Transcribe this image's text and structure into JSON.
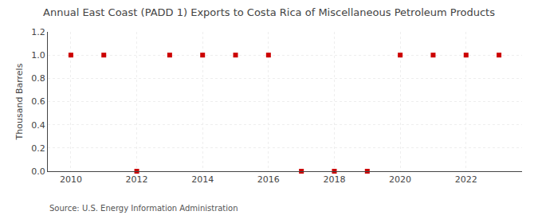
{
  "chart_data": {
    "type": "scatter",
    "title": "Annual East Coast (PADD 1) Exports to Costa Rica of Miscellaneous Petroleum Products",
    "ylabel": "Thousand Barrels",
    "annotations": [
      "Source: U.S. Energy Information Administration"
    ],
    "x": [
      2010,
      2011,
      2012,
      2013,
      2014,
      2015,
      2016,
      2017,
      2018,
      2019,
      2020,
      2021,
      2022,
      2023
    ],
    "values": [
      1.0,
      1.0,
      0.0,
      1.0,
      1.0,
      1.0,
      1.0,
      0.0,
      0.0,
      0.0,
      1.0,
      1.0,
      1.0,
      1.0
    ],
    "color": "#cc0000",
    "marker": "square",
    "xlim": [
      2009.3,
      2023.7
    ],
    "ylim": [
      0.0,
      1.2
    ],
    "xticks": [
      2010,
      2012,
      2014,
      2016,
      2018,
      2020,
      2022
    ],
    "yticks": [
      {
        "value": 0.0,
        "label": "0.0"
      },
      {
        "value": 0.2,
        "label": "0.2"
      },
      {
        "value": 0.4,
        "label": "0.4"
      },
      {
        "value": 0.6,
        "label": "0.6"
      },
      {
        "value": 0.8,
        "label": "0.8"
      },
      {
        "value": 1.0,
        "label": "1.0"
      },
      {
        "value": 1.2,
        "label": "1.2"
      }
    ],
    "grid": true
  }
}
